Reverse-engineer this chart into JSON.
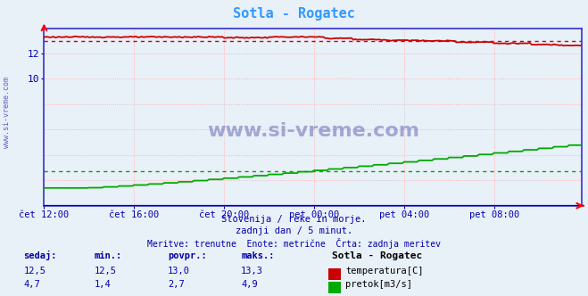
{
  "title": "Sotla - Rogatec",
  "bg_color": "#e8f0f8",
  "plot_bg_color": "#e8f0f8",
  "grid_color_red": "#ffaaaa",
  "grid_color_gray": "#cccccc",
  "tick_labels": [
    "čet 12:00",
    "čet 16:00",
    "čet 20:00",
    "pet 00:00",
    "pet 04:00",
    "pet 08:00"
  ],
  "tick_positions": [
    0,
    48,
    96,
    144,
    192,
    240
  ],
  "ylim": [
    0,
    14.0
  ],
  "yticks": [
    10,
    12
  ],
  "temp_color": "#cc0000",
  "flow_color": "#00aa00",
  "height_color": "#0000cc",
  "temp_avg": 13.0,
  "flow_avg": 2.7,
  "subtitle1": "Slovenija / reke in morje.",
  "subtitle2": "zadnji dan / 5 minut.",
  "subtitle3": "Meritve: trenutne  Enote: metrične  Črta: zadnja meritev",
  "footer_bold": "Sotla - Rogatec",
  "label_color": "#0000aa",
  "watermark_color": "#000080",
  "spine_color": "#3333cc",
  "title_color": "#3399ff",
  "col_headers": [
    "sedaj:",
    "min.:",
    "povpr.:",
    "maks.:"
  ],
  "temp_row": [
    "12,5",
    "12,5",
    "13,0",
    "13,3"
  ],
  "flow_row": [
    "4,7",
    "1,4",
    "2,7",
    "4,9"
  ],
  "temp_label": "temperatura[C]",
  "flow_label": "pretok[m3/s]"
}
